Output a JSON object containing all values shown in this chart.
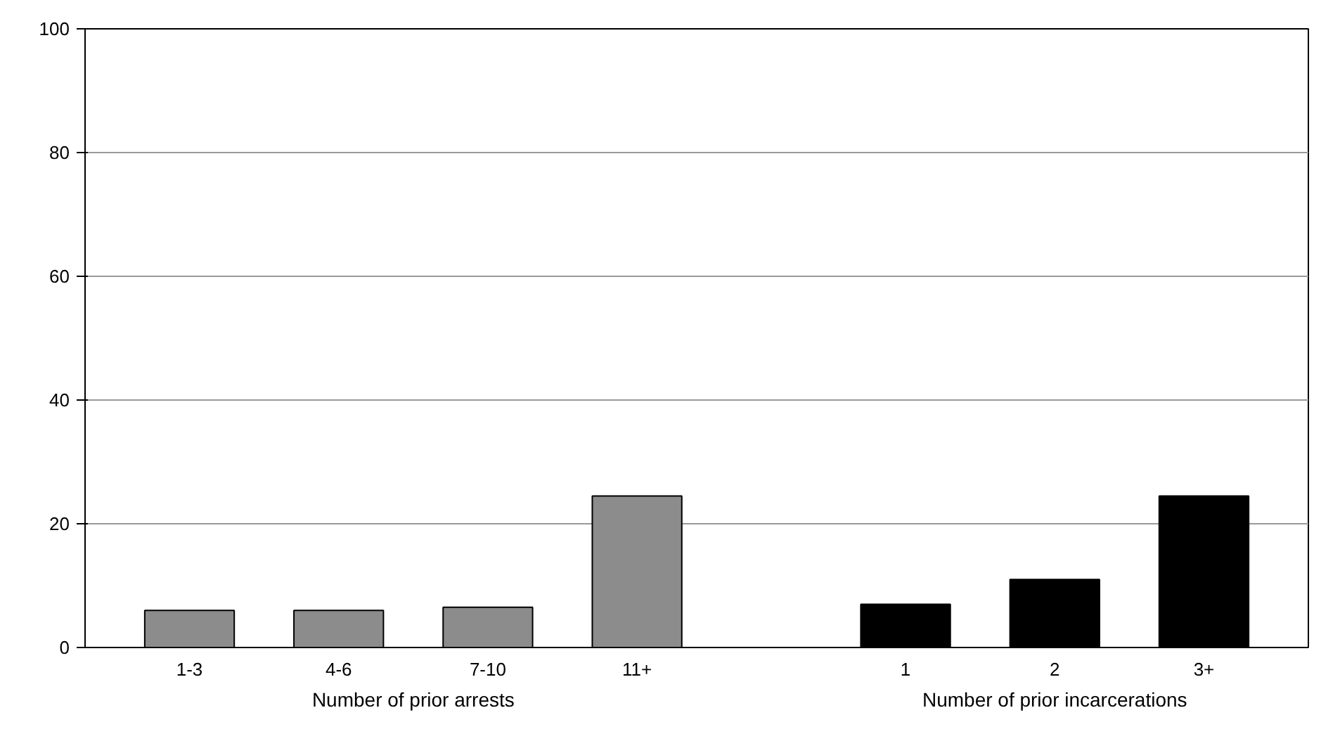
{
  "chart_data": {
    "type": "bar",
    "categories": [
      "1-3",
      "4-6",
      "7-10",
      "11+",
      "1",
      "2",
      "3+"
    ],
    "series": [
      {
        "color": "#8c8c8c",
        "values": [
          6,
          6,
          6.5,
          24.5,
          null,
          null,
          null
        ]
      },
      {
        "color": "#000000",
        "values": [
          null,
          null,
          null,
          null,
          7,
          11,
          24.5
        ]
      }
    ],
    "annotations": [
      "Number of prior arrests",
      "Number of prior incarcerations"
    ],
    "ylim": [
      0,
      100
    ],
    "yticks": [
      0,
      20,
      40,
      60,
      80,
      100
    ],
    "grid": "y"
  }
}
